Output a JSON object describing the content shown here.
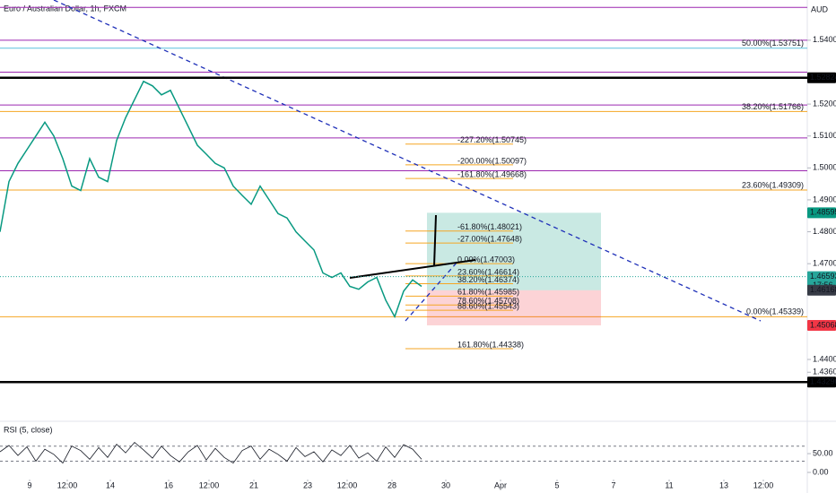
{
  "chart_data": [
    {
      "type": "line",
      "title": "Euro / Australian Dollar, 1h, FXCM",
      "currency": "AUD",
      "xlim": [
        0,
        90
      ],
      "x": [
        0,
        1,
        2,
        3,
        4,
        5,
        6,
        7,
        8,
        9,
        10,
        11,
        12,
        13,
        14,
        15,
        16,
        17,
        18,
        19,
        20,
        21,
        22,
        23,
        24,
        25,
        26,
        27,
        28,
        29,
        30,
        31,
        32,
        33,
        34,
        35,
        36,
        37,
        38,
        39,
        40,
        41,
        42,
        43,
        44,
        45,
        46,
        47
      ],
      "values": [
        1.48,
        1.4957,
        1.5014,
        1.5057,
        1.51,
        1.5143,
        1.51,
        1.5029,
        1.4943,
        1.4929,
        1.5029,
        1.4971,
        1.4957,
        1.5086,
        1.5157,
        1.5214,
        1.5271,
        1.5257,
        1.5229,
        1.5243,
        1.5186,
        1.5129,
        1.5071,
        1.5043,
        1.5014,
        1.5,
        1.4943,
        1.4914,
        1.4886,
        1.4943,
        1.49,
        1.4857,
        1.4843,
        1.48,
        1.4771,
        1.4743,
        1.4671,
        1.4657,
        1.4671,
        1.4629,
        1.462,
        1.4643,
        1.4657,
        1.4586,
        1.4534,
        1.4614,
        1.4649,
        1.4629
      ],
      "color": "#089981",
      "ylim": [
        1.424,
        1.5526
      ],
      "yticks": [
        {
          "value": 1.54,
          "label": "1.54000"
        },
        {
          "value": 1.52,
          "label": "1.52000"
        },
        {
          "value": 1.51,
          "label": "1.51000"
        },
        {
          "value": 1.5,
          "label": "1.50000"
        },
        {
          "value": 1.49,
          "label": "1.49000"
        },
        {
          "value": 1.48,
          "label": "1.48000"
        },
        {
          "value": 1.47,
          "label": "1.47000"
        },
        {
          "value": 1.44,
          "label": "1.44000"
        },
        {
          "value": 1.436,
          "label": "1.43600"
        }
      ],
      "hlines": [
        1.5503,
        1.54,
        1.53,
        1.5197,
        1.5094,
        1.4991
      ],
      "fib_right": [
        {
          "label": "50.00%(1.53751)",
          "value": 1.53751,
          "color": "#5bc0de"
        },
        {
          "label": "38.20%(1.51766)",
          "value": 1.51766,
          "color": "#f5a623"
        },
        {
          "label": "23.60%(1.49309)",
          "value": 1.49309,
          "color": "#f5a623"
        },
        {
          "label": "0.00%(1.45339)",
          "value": 1.45339,
          "color": "#f5a623"
        }
      ],
      "fib_center": [
        {
          "label": "-227.20%(1.50745)",
          "value": 1.50745
        },
        {
          "label": "-200.00%(1.50097)",
          "value": 1.50097
        },
        {
          "label": "-161.80%(1.49668)",
          "value": 1.49668
        },
        {
          "label": "-61.80%(1.48021)",
          "value": 1.48021
        },
        {
          "label": "-27.00%(1.47648)",
          "value": 1.47648
        },
        {
          "label": "0.00%(1.47003)",
          "value": 1.47003
        },
        {
          "label": "23.60%(1.46614)",
          "value": 1.46614
        },
        {
          "label": "38.20%(1.46374)",
          "value": 1.46374
        },
        {
          "label": "61.80%(1.45985)",
          "value": 1.45985
        },
        {
          "label": "78.60%(1.45708)",
          "value": 1.45708
        },
        {
          "label": "88.60%(1.45543)",
          "value": 1.45543
        },
        {
          "label": "161.80%(1.44338)",
          "value": 1.44338
        }
      ],
      "price_tags": [
        {
          "value": 1.52824,
          "color": "#000000"
        },
        {
          "value": 1.48595,
          "color": "#089981"
        },
        {
          "value": 1.46593,
          "color": "#26a69a",
          "timer": "17:56"
        },
        {
          "value": 1.46168,
          "color": "#363a45"
        },
        {
          "value": 1.45068,
          "color": "#f23645"
        },
        {
          "value": 1.4329,
          "label": "1.43290",
          "color": "#000000"
        }
      ]
    },
    {
      "type": "line",
      "title": "RSI (5, close)",
      "color": "#131722",
      "xlim": [
        0,
        90
      ],
      "x": [
        0,
        1,
        2,
        3,
        4,
        5,
        6,
        7,
        8,
        9,
        10,
        11,
        12,
        13,
        14,
        15,
        16,
        17,
        18,
        19,
        20,
        21,
        22,
        23,
        24,
        25,
        26,
        27,
        28,
        29,
        30,
        31,
        32,
        33,
        34,
        35,
        36,
        37,
        38,
        39,
        40,
        41,
        42,
        43,
        44,
        45,
        46,
        47
      ],
      "values": [
        55,
        72,
        45,
        68,
        30,
        62,
        48,
        25,
        70,
        58,
        35,
        66,
        40,
        75,
        52,
        80,
        60,
        38,
        70,
        45,
        28,
        55,
        72,
        33,
        64,
        40,
        25,
        58,
        70,
        35,
        62,
        48,
        30,
        66,
        42,
        55,
        28,
        60,
        45,
        72,
        38,
        52,
        30,
        68,
        40,
        74,
        62,
        35
      ],
      "ylim": [
        -19,
        117
      ],
      "yticks": [
        {
          "value": 50,
          "label": "50.00"
        },
        {
          "value": 0,
          "label": "0.00"
        }
      ],
      "bands": [
        70,
        30
      ],
      "xticks": [
        {
          "value": 3.3,
          "label": "9"
        },
        {
          "value": 7.5,
          "label": "12:00"
        },
        {
          "value": 12.3,
          "label": "14"
        },
        {
          "value": 18.8,
          "label": "16"
        },
        {
          "value": 23.3,
          "label": "12:00"
        },
        {
          "value": 28.3,
          "label": "21"
        },
        {
          "value": 34.3,
          "label": "23"
        },
        {
          "value": 38.7,
          "label": "12:00"
        },
        {
          "value": 43.7,
          "label": "28"
        },
        {
          "value": 49.7,
          "label": "30"
        },
        {
          "value": 55.8,
          "label": "Apr"
        },
        {
          "value": 62.1,
          "label": "5"
        },
        {
          "value": 68.4,
          "label": "7"
        },
        {
          "value": 74.6,
          "label": "11"
        },
        {
          "value": 80.7,
          "label": "13"
        },
        {
          "value": 85.1,
          "label": "12:00"
        }
      ]
    }
  ]
}
